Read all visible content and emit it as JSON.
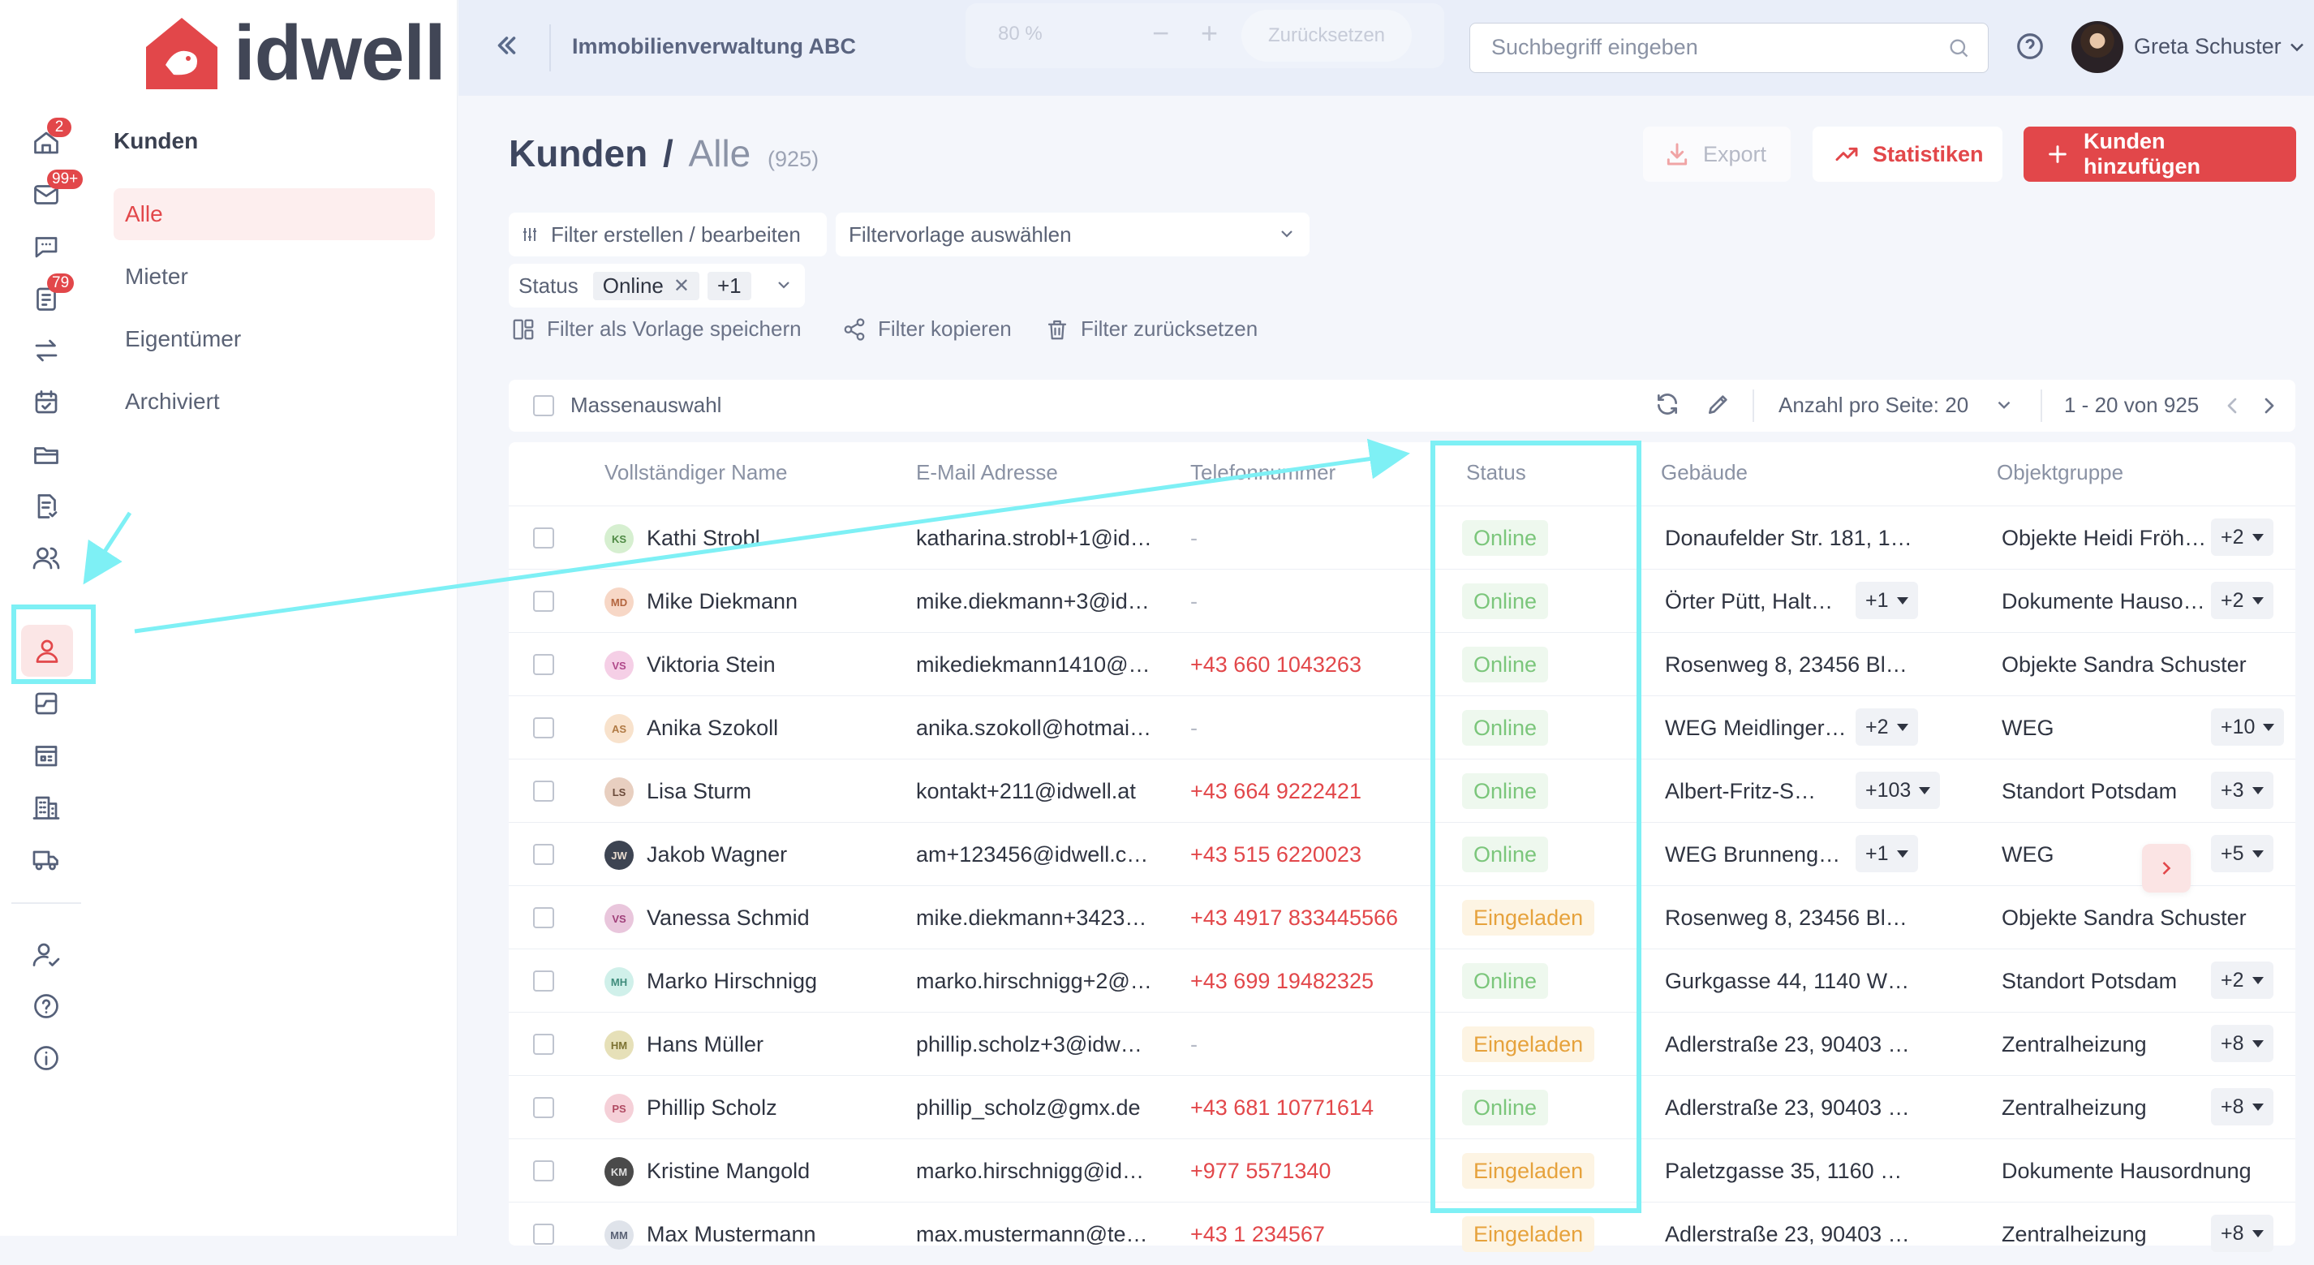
{
  "brand": {
    "name": "idwell"
  },
  "rail": {
    "items": [
      {
        "icon": "home-icon",
        "badge": "2"
      },
      {
        "icon": "mail-icon",
        "badge": "99+"
      },
      {
        "icon": "chat-icon",
        "badge": ""
      },
      {
        "icon": "ticket-icon",
        "badge": "79"
      },
      {
        "icon": "transfer-icon",
        "badge": ""
      },
      {
        "icon": "calendar-icon",
        "badge": ""
      },
      {
        "icon": "folder-icon",
        "badge": ""
      },
      {
        "icon": "document-check-icon",
        "badge": ""
      },
      {
        "icon": "users-icon",
        "badge": ""
      },
      {
        "icon": "person-icon",
        "badge": ""
      },
      {
        "icon": "board-icon",
        "badge": ""
      },
      {
        "icon": "store-icon",
        "badge": ""
      },
      {
        "icon": "building-icon",
        "badge": ""
      },
      {
        "icon": "truck-icon",
        "badge": ""
      },
      {
        "icon": "user-settings-icon",
        "badge": ""
      },
      {
        "icon": "help-circle-icon",
        "badge": ""
      },
      {
        "icon": "info-icon",
        "badge": ""
      }
    ]
  },
  "subnav": {
    "title": "Kunden",
    "items": [
      {
        "label": "Alle",
        "active": true
      },
      {
        "label": "Mieter",
        "active": false
      },
      {
        "label": "Eigentümer",
        "active": false
      },
      {
        "label": "Archiviert",
        "active": false
      }
    ]
  },
  "header": {
    "org_name": "Immobilienverwaltung ABC",
    "zoom": {
      "value": "80 %",
      "minus": "−",
      "plus": "+",
      "reset_label": "Zurücksetzen"
    },
    "search_placeholder": "Suchbegriff eingeben",
    "user_name": "Greta Schuster"
  },
  "page": {
    "title": "Kunden",
    "separator": "/",
    "crumb": "Alle",
    "count": "(925)",
    "export_label": "Export",
    "stats_label": "Statistiken",
    "add_label": "Kunden hinzufügen"
  },
  "filters": {
    "edit_label": "Filter erstellen / bearbeiten",
    "template_placeholder": "Filtervorlage auswählen",
    "status_label": "Status",
    "status_value": "Online",
    "status_more": "+1",
    "save_template_label": "Filter als Vorlage speichern",
    "copy_label": "Filter kopieren",
    "reset_label": "Filter zurücksetzen"
  },
  "toolbar": {
    "mass_select_label": "Massenauswahl",
    "per_page_label": "Anzahl pro Seite:",
    "per_page_value": "20",
    "range_label": "1 - 20 von 925"
  },
  "table": {
    "columns": [
      "Vollständiger Name",
      "E-Mail Adresse",
      "Telefonnummer",
      "Status",
      "Gebäude",
      "Objektgruppe"
    ],
    "rows": [
      {
        "initials": "KS",
        "avatar_bg": "#d6efd0",
        "avatar_fg": "#4f8a45",
        "name": "Kathi Strobl",
        "email": "katharina.strobl+1@id…",
        "phone": "-",
        "status": "Online",
        "status_type": "online",
        "building": "Donaufelder Str. 181, 1…",
        "building_more": "",
        "group": "Objekte Heidi Fröh…",
        "group_more": "+2"
      },
      {
        "initials": "MD",
        "avatar_bg": "#f7d7c6",
        "avatar_fg": "#b3653e",
        "name": "Mike Diekmann",
        "email": "mike.diekmann+3@id…",
        "phone": "-",
        "status": "Online",
        "status_type": "online",
        "building": "Örter Pütt, Halt…",
        "building_more": "+1",
        "group": "Dokumente Hauso…",
        "group_more": "+2"
      },
      {
        "initials": "VS",
        "avatar_bg": "#f5cfe6",
        "avatar_fg": "#b0498a",
        "name": "Viktoria Stein",
        "email": "mikediekmann1410@…",
        "phone": "+43 660 1043263",
        "status": "Online",
        "status_type": "online",
        "building": "Rosenweg 8, 23456 Bl…",
        "building_more": "",
        "group": "Objekte Sandra Schuster",
        "group_more": ""
      },
      {
        "initials": "AS",
        "avatar_bg": "#f8e2cc",
        "avatar_fg": "#b07a44",
        "name": "Anika Szokoll",
        "email": "anika.szokoll@hotmai…",
        "phone": "-",
        "status": "Online",
        "status_type": "online",
        "building": "WEG Meidlinger…",
        "building_more": "+2",
        "group": "WEG",
        "group_more": "+10"
      },
      {
        "initials": "LS",
        "avatar_bg": "#e8cfc0",
        "avatar_fg": "#6a4a3a",
        "name": "Lisa Sturm",
        "email": "kontakt+211@idwell.at",
        "phone": "+43 664 9222421",
        "status": "Online",
        "status_type": "online",
        "building": "Albert-Fritz-S…",
        "building_more": "+103",
        "group": "Standort Potsdam",
        "group_more": "+3"
      },
      {
        "initials": "JW",
        "avatar_bg": "#3d4452",
        "avatar_fg": "#e8dcd0",
        "name": "Jakob Wagner",
        "email": "am+123456@idwell.c…",
        "phone": "+43 515 6220023",
        "status": "Online",
        "status_type": "online",
        "building": "WEG Brunneng…",
        "building_more": "+1",
        "group": "WEG",
        "group_more": "+5"
      },
      {
        "initials": "VS",
        "avatar_bg": "#e9c6dc",
        "avatar_fg": "#a0407a",
        "name": "Vanessa Schmid",
        "email": "mike.diekmann+3423…",
        "phone": "+43 4917 833445566",
        "status": "Eingeladen",
        "status_type": "invited",
        "building": "Rosenweg 8, 23456 Bl…",
        "building_more": "",
        "group": "Objekte Sandra Schuster",
        "group_more": ""
      },
      {
        "initials": "MH",
        "avatar_bg": "#d0f0ea",
        "avatar_fg": "#3f8c7c",
        "name": "Marko Hirschnigg",
        "email": "marko.hirschnigg+2@…",
        "phone": "+43 699 19482325",
        "status": "Online",
        "status_type": "online",
        "building": "Gurkgasse 44, 1140 W…",
        "building_more": "",
        "group": "Standort Potsdam",
        "group_more": "+2"
      },
      {
        "initials": "HM",
        "avatar_bg": "#e6e0b8",
        "avatar_fg": "#7c7232",
        "name": "Hans Müller",
        "email": "phillip.scholz+3@idw…",
        "phone": "-",
        "status": "Eingeladen",
        "status_type": "invited",
        "building": "Adlerstraße 23, 90403 …",
        "building_more": "",
        "group": "Zentralheizung",
        "group_more": "+8"
      },
      {
        "initials": "PS",
        "avatar_bg": "#f5d0d8",
        "avatar_fg": "#b04a62",
        "name": "Phillip Scholz",
        "email": "phillip_scholz@gmx.de",
        "phone": "+43 681 10771614",
        "status": "Online",
        "status_type": "online",
        "building": "Adlerstraße 23, 90403 …",
        "building_more": "",
        "group": "Zentralheizung",
        "group_more": "+8"
      },
      {
        "initials": "KM",
        "avatar_bg": "#4a4a4a",
        "avatar_fg": "#e0e0e0",
        "name": "Kristine Mangold",
        "email": "marko.hirschnigg@id…",
        "phone": "+977 5571340",
        "status": "Eingeladen",
        "status_type": "invited",
        "building": "Paletzgasse 35, 1160 …",
        "building_more": "",
        "group": "Dokumente Hausordnung",
        "group_more": ""
      },
      {
        "initials": "MM",
        "avatar_bg": "#dfe3ea",
        "avatar_fg": "#5a6275",
        "name": "Max Mustermann",
        "email": "max.mustermann@te…",
        "phone": "+43 1 234567",
        "status": "Eingeladen",
        "status_type": "invited",
        "building": "Adlerstraße 23, 90403 …",
        "building_more": "",
        "group": "Zentralheizung",
        "group_more": "+8"
      }
    ]
  },
  "colors": {
    "accent": "#e2474a",
    "online": "#7bc67b",
    "invited": "#e6a23c",
    "annotation": "#7ef0f5"
  }
}
